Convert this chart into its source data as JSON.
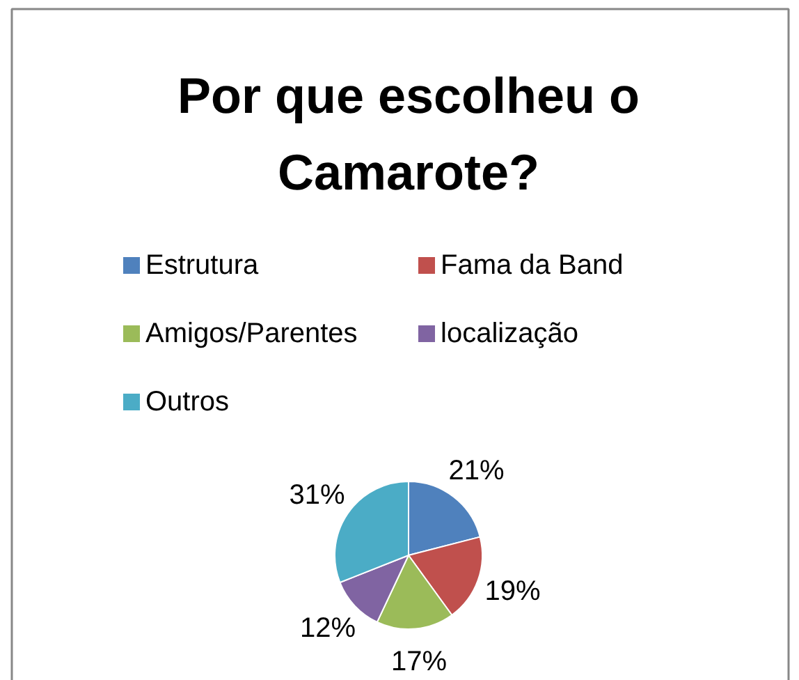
{
  "chart_data": {
    "type": "pie",
    "title": "Por que escolheu o Camarote?",
    "categories": [
      "Estrutura",
      "Fama da Band",
      "Amigos/Parentes",
      "localização",
      "Outros"
    ],
    "values": [
      21,
      19,
      17,
      12,
      31
    ],
    "colors": [
      "#4f81bd",
      "#c0504d",
      "#9bbb59",
      "#8064a2",
      "#4bacc6"
    ],
    "value_labels": [
      "21%",
      "19%",
      "17%",
      "12%",
      "31%"
    ],
    "legend": "top"
  }
}
